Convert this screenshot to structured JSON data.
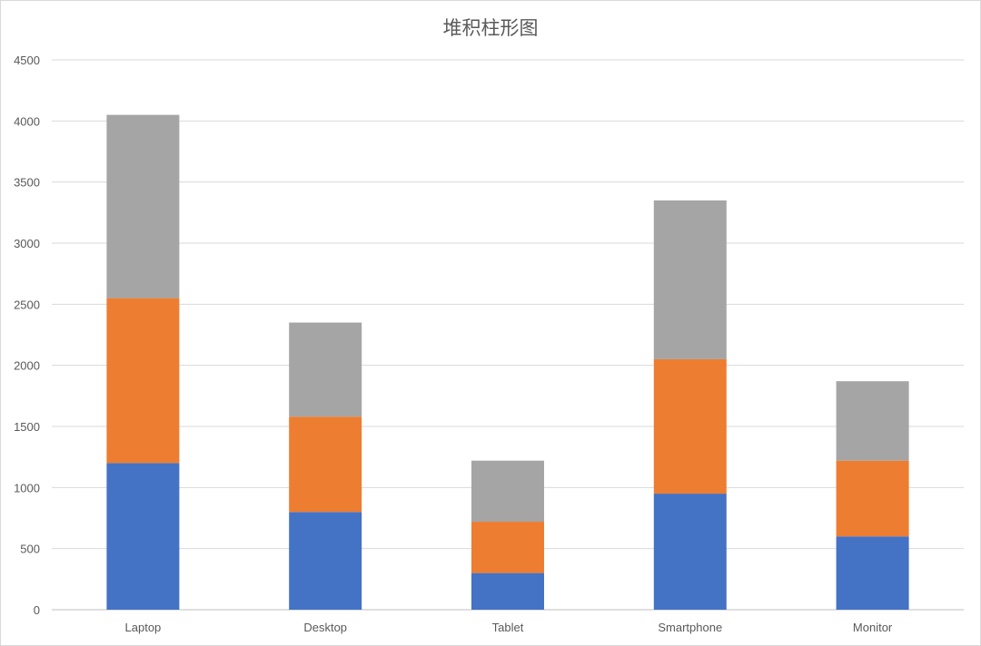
{
  "chart_data": {
    "type": "bar",
    "stacked": true,
    "title": "堆积柱形图",
    "categories": [
      "Laptop",
      "Desktop",
      "Tablet",
      "Smartphone",
      "Monitor"
    ],
    "series": [
      {
        "color": "#4472C4",
        "values": [
          1200,
          800,
          300,
          950,
          600
        ]
      },
      {
        "color": "#ED7D31",
        "values": [
          1350,
          780,
          420,
          1100,
          620
        ]
      },
      {
        "color": "#A5A5A5",
        "values": [
          1500,
          770,
          500,
          1300,
          650
        ]
      }
    ],
    "ylim": [
      0,
      4500
    ],
    "yticks": [
      0,
      500,
      1000,
      1500,
      2000,
      2500,
      3000,
      3500,
      4000,
      4500
    ],
    "grid": true,
    "legend": "none",
    "xlabel": "",
    "ylabel": ""
  }
}
